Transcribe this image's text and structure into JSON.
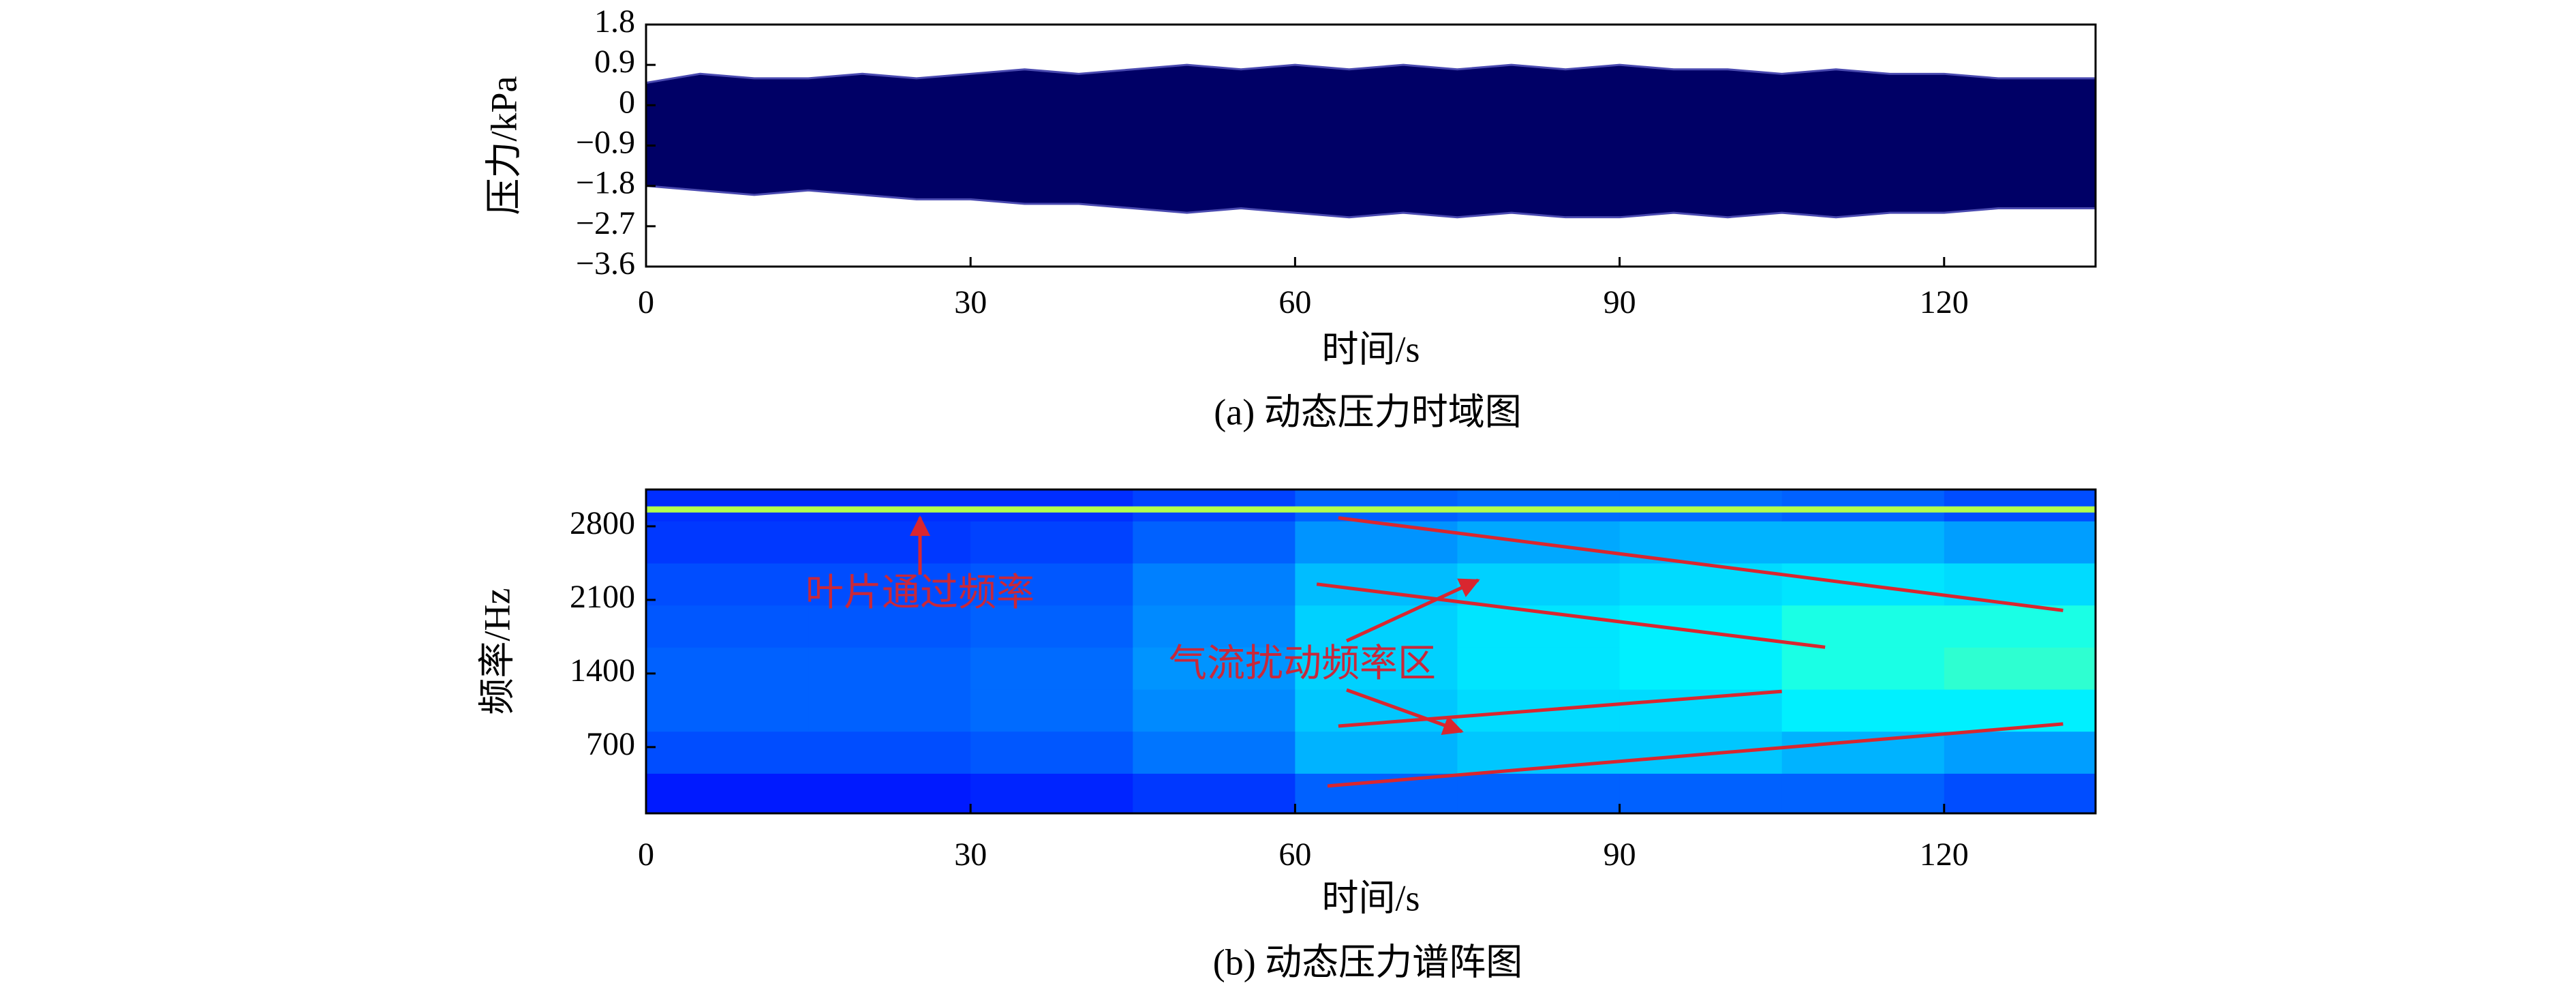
{
  "chart_data": [
    {
      "type": "band",
      "caption": "(a) 动态压力时域图",
      "xlabel": "时间/s",
      "ylabel": "压力/kPa",
      "color": "#000066",
      "edge_color": "#4a4ab0",
      "x": [
        0,
        5,
        10,
        15,
        20,
        25,
        30,
        35,
        40,
        45,
        50,
        55,
        60,
        65,
        70,
        75,
        80,
        85,
        90,
        95,
        100,
        105,
        110,
        115,
        120,
        125,
        130,
        134
      ],
      "series": [
        {
          "values": [
            0.5,
            0.7,
            0.6,
            0.6,
            0.7,
            0.6,
            0.7,
            0.8,
            0.7,
            0.8,
            0.9,
            0.8,
            0.9,
            0.8,
            0.9,
            0.8,
            0.9,
            0.8,
            0.9,
            0.8,
            0.8,
            0.7,
            0.8,
            0.7,
            0.7,
            0.6,
            0.6,
            0.6
          ]
        },
        {
          "values": [
            -1.8,
            -1.9,
            -2.0,
            -1.9,
            -2.0,
            -2.1,
            -2.1,
            -2.2,
            -2.2,
            -2.3,
            -2.4,
            -2.3,
            -2.4,
            -2.5,
            -2.4,
            -2.5,
            -2.4,
            -2.5,
            -2.5,
            -2.4,
            -2.5,
            -2.4,
            -2.5,
            -2.4,
            -2.4,
            -2.3,
            -2.3,
            -2.3
          ]
        }
      ],
      "xlim": [
        0,
        134
      ],
      "xticks": [
        0,
        30,
        60,
        90,
        120
      ],
      "ylim": [
        -3.6,
        1.8
      ],
      "yticks": [
        {
          "value": -3.6,
          "label": "−3.6"
        },
        {
          "value": -2.7,
          "label": "−2.7"
        },
        {
          "value": -1.8,
          "label": "−1.8"
        },
        {
          "value": -0.9,
          "label": "−0.9"
        },
        0,
        0.9,
        1.8
      ]
    },
    {
      "type": "heatmap",
      "caption": "(b) 动态压力谱阵图",
      "xlabel": "时间/s",
      "ylabel": "频率/Hz",
      "xbins": [
        0,
        15,
        30,
        45,
        60,
        75,
        90,
        105,
        120,
        134
      ],
      "ybins": [
        70,
        450,
        850,
        1250,
        1650,
        2050,
        2450,
        2850,
        3150
      ],
      "zlim": [
        0,
        1
      ],
      "z": [
        [
          0.15,
          0.15,
          0.16,
          0.18,
          0.22,
          0.22,
          0.22,
          0.22,
          0.2
        ],
        [
          0.2,
          0.2,
          0.21,
          0.24,
          0.3,
          0.32,
          0.32,
          0.3,
          0.28
        ],
        [
          0.22,
          0.22,
          0.23,
          0.26,
          0.32,
          0.34,
          0.34,
          0.36,
          0.36
        ],
        [
          0.22,
          0.22,
          0.23,
          0.27,
          0.33,
          0.35,
          0.36,
          0.4,
          0.42
        ],
        [
          0.21,
          0.21,
          0.22,
          0.26,
          0.33,
          0.35,
          0.36,
          0.4,
          0.4
        ],
        [
          0.2,
          0.2,
          0.21,
          0.25,
          0.31,
          0.33,
          0.34,
          0.35,
          0.34
        ],
        [
          0.18,
          0.18,
          0.19,
          0.22,
          0.27,
          0.29,
          0.3,
          0.3,
          0.28
        ],
        [
          0.17,
          0.17,
          0.17,
          0.19,
          0.22,
          0.23,
          0.23,
          0.22,
          0.2
        ]
      ],
      "tonal": {
        "y": 2960,
        "z": 0.55
      },
      "line_color": "#d9262f",
      "lines": [
        {
          "x": [
            64,
            131
          ],
          "y": [
            2880,
            2000
          ]
        },
        {
          "x": [
            62,
            109
          ],
          "y": [
            2250,
            1650
          ]
        },
        {
          "x": [
            64,
            105
          ],
          "y": [
            900,
            1230
          ]
        },
        {
          "x": [
            63,
            131
          ],
          "y": [
            330,
            920
          ]
        }
      ],
      "annotations": [
        "叶片通过频率",
        "气流扰动频率区"
      ],
      "xlim": [
        0,
        134
      ],
      "xticks": [
        0,
        30,
        60,
        90,
        120
      ],
      "ylim": [
        70,
        3150
      ],
      "yticks": [
        700,
        1400,
        2100,
        2800
      ]
    }
  ]
}
